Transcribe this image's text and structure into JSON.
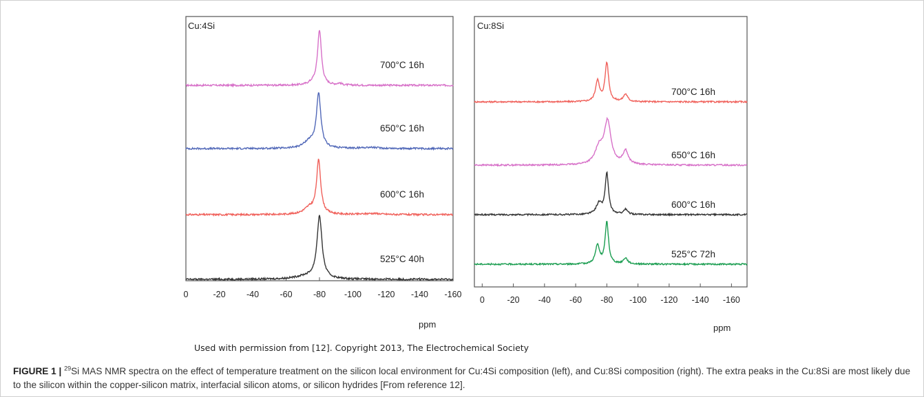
{
  "credit": "Used with permission from [12]. Copyright 2013, The Electrochemical Society",
  "caption": {
    "label": "FIGURE 1 |",
    "isotope": "29",
    "text": "Si MAS NMR spectra on the effect of temperature treatment on the silicon local environment for Cu:4Si composition (left), and Cu:8Si composition (right). The extra peaks in the Cu:8Si are most likely due to the silicon within the copper-silicon matrix, interfacial silicon atoms, or silicon hydrides [From reference 12]."
  },
  "chart_data": [
    {
      "type": "line",
      "panel_label": "Cu:4Si",
      "xlabel": "ppm",
      "xlim": [
        0,
        -160
      ],
      "xticks": [
        0,
        -20,
        -40,
        -60,
        -80,
        -100,
        -120,
        -140,
        -160
      ],
      "series": [
        {
          "name": "700°C 16h",
          "color": "#d770c8",
          "peaks": [
            {
              "x": -80,
              "h": 0.95,
              "w": 1.4
            },
            {
              "x": -76,
              "h": 0.04,
              "w": 3
            },
            {
              "x": -92,
              "h": 0.03,
              "w": 1.5
            }
          ]
        },
        {
          "name": "650°C 16h",
          "color": "#5168b8",
          "peaks": [
            {
              "x": -79.5,
              "h": 0.92,
              "w": 1.6
            },
            {
              "x": -74,
              "h": 0.12,
              "w": 4
            },
            {
              "x": -110,
              "h": 0.02,
              "w": 6
            }
          ]
        },
        {
          "name": "600°C 16h",
          "color": "#f0605a",
          "peaks": [
            {
              "x": -79.5,
              "h": 0.92,
              "w": 1.5
            },
            {
              "x": -74,
              "h": 0.11,
              "w": 4
            },
            {
              "x": -112,
              "h": 0.02,
              "w": 6
            }
          ]
        },
        {
          "name": "525°C 40h",
          "color": "#333333",
          "peaks": [
            {
              "x": -80,
              "h": 1.08,
              "w": 1.8
            },
            {
              "x": -72,
              "h": 0.05,
              "w": 8
            }
          ]
        }
      ]
    },
    {
      "type": "line",
      "panel_label": "Cu:8Si",
      "xlabel": "ppm",
      "xlim": [
        5,
        -170
      ],
      "xticks": [
        0,
        -20,
        -40,
        -60,
        -80,
        -100,
        -120,
        -140,
        -160
      ],
      "series": [
        {
          "name": "700°C 16h",
          "color": "#f0605a",
          "peaks": [
            {
              "x": -80,
              "h": 0.78,
              "w": 1.4
            },
            {
              "x": -74,
              "h": 0.42,
              "w": 1.5
            },
            {
              "x": -92,
              "h": 0.15,
              "w": 1.6
            }
          ]
        },
        {
          "name": "650°C 16h",
          "color": "#d770c8",
          "peaks": [
            {
              "x": -80.5,
              "h": 0.86,
              "w": 2.6
            },
            {
              "x": -75,
              "h": 0.32,
              "w": 3
            },
            {
              "x": -92,
              "h": 0.27,
              "w": 2
            }
          ]
        },
        {
          "name": "600°C 16h",
          "color": "#333333",
          "peaks": [
            {
              "x": -80,
              "h": 0.82,
              "w": 1.3
            },
            {
              "x": -75,
              "h": 0.22,
              "w": 2.2
            },
            {
              "x": -92,
              "h": 0.1,
              "w": 1.6
            }
          ]
        },
        {
          "name": "525°C 72h",
          "color": "#1a9d50",
          "peaks": [
            {
              "x": -80,
              "h": 0.84,
              "w": 1.3
            },
            {
              "x": -74,
              "h": 0.37,
              "w": 1.6
            },
            {
              "x": -92,
              "h": 0.12,
              "w": 1.6
            }
          ]
        }
      ]
    }
  ]
}
